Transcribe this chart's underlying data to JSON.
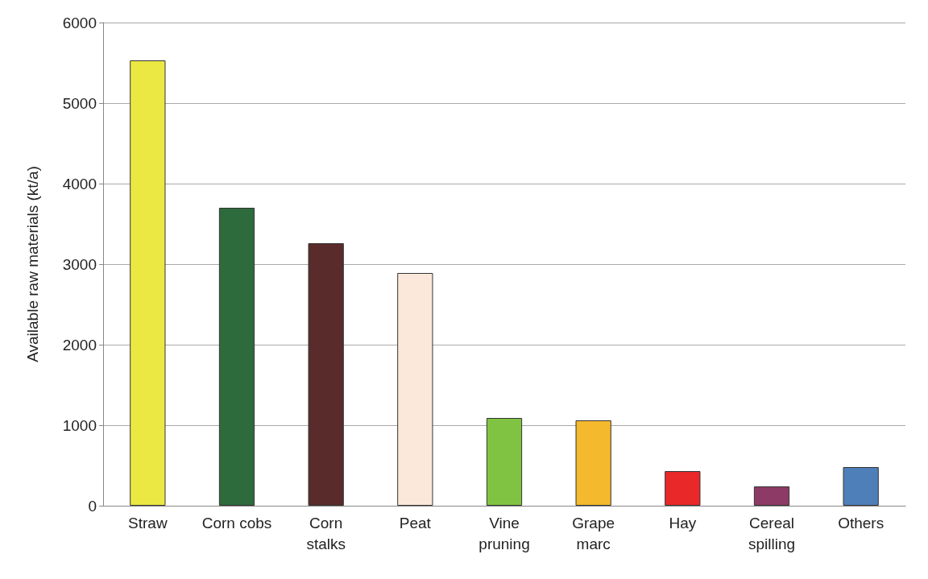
{
  "chart_data": {
    "type": "bar",
    "ylabel": "Available raw materials (kt/a)",
    "categories": [
      "Straw",
      "Corn cobs",
      "Corn\nstalks",
      "Peat",
      "Vine\npruning",
      "Grape\nmarc",
      "Hay",
      "Cereal\nspilling",
      "Others"
    ],
    "values": [
      5530,
      3700,
      3260,
      2890,
      1090,
      1060,
      430,
      240,
      480
    ],
    "colors": [
      "#ece843",
      "#2d6a3c",
      "#592b2a",
      "#fbe8da",
      "#80c342",
      "#f4b92c",
      "#e9282a",
      "#8e3a67",
      "#4f7fb9"
    ],
    "ylim": [
      0,
      6000
    ],
    "yticks": [
      0,
      1000,
      2000,
      3000,
      4000,
      5000,
      6000
    ],
    "grid": "y"
  }
}
